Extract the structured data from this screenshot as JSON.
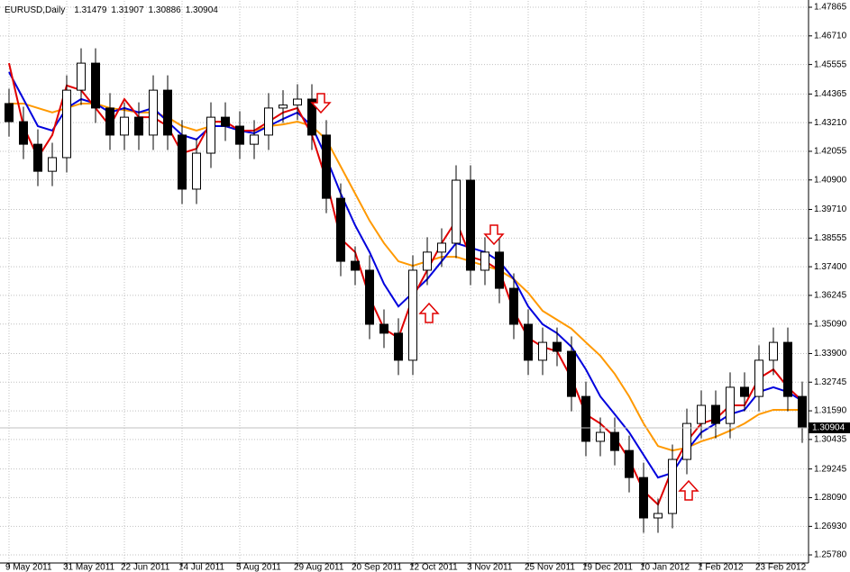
{
  "chart_data": {
    "type": "candlestick",
    "title": "EURUSD,Daily",
    "header_values": [
      1.31479,
      1.31907,
      1.30886,
      1.30904
    ],
    "categories": [
      "9 May 2011",
      null,
      null,
      null,
      "31 May 2011",
      null,
      null,
      null,
      "22 Jun 2011",
      null,
      null,
      null,
      "14 Jul 2011",
      null,
      null,
      null,
      "5 Aug 2011",
      null,
      null,
      null,
      "29 Aug 2011",
      null,
      null,
      null,
      "20 Sep 2011",
      null,
      null,
      null,
      "12 Oct 2011",
      null,
      null,
      null,
      "3 Nov 2011",
      null,
      null,
      null,
      "25 Nov 2011",
      null,
      null,
      null,
      "19 Dec 2011",
      null,
      null,
      null,
      "10 Jan 2012",
      null,
      null,
      null,
      "1 Feb 2012",
      null,
      null,
      null,
      "23 Feb 2012",
      null,
      null,
      null
    ],
    "open": [
      1.4398,
      1.4325,
      1.4234,
      1.4125,
      1.418,
      1.4452,
      1.4561,
      1.438,
      1.4271,
      1.4343,
      1.4271,
      1.4452,
      1.4271,
      1.4053,
      1.4198,
      1.4343,
      1.4307,
      1.4234,
      1.4271,
      1.438,
      1.4392,
      1.4416,
      1.4271,
      1.4016,
      1.3762,
      1.3726,
      1.3508,
      1.3472,
      1.3363,
      1.3726,
      1.3799,
      1.3835,
      1.4089,
      1.3726,
      1.3799,
      1.3653,
      1.3508,
      1.3363,
      1.3435,
      1.3399,
      1.3217,
      1.3036,
      1.3072,
      1.2999,
      1.289,
      1.2727,
      1.2745,
      1.2963,
      1.3108,
      1.3181,
      1.3108,
      1.3254,
      1.3217,
      1.3363,
      1.3435,
      1.3217
    ],
    "high": [
      1.4458,
      1.4385,
      1.4294,
      1.424,
      1.4512,
      1.4621,
      1.4621,
      1.444,
      1.4403,
      1.4403,
      1.4512,
      1.4512,
      1.4331,
      1.4258,
      1.4403,
      1.4403,
      1.4367,
      1.4331,
      1.444,
      1.4452,
      1.4476,
      1.4476,
      1.4331,
      1.4076,
      1.3822,
      1.3786,
      1.3568,
      1.3532,
      1.3786,
      1.3859,
      1.3895,
      1.4149,
      1.4149,
      1.3859,
      1.3859,
      1.3713,
      1.3568,
      1.3495,
      1.3495,
      1.3459,
      1.3277,
      1.3132,
      1.3132,
      1.3059,
      1.295,
      1.2805,
      1.3023,
      1.3168,
      1.3241,
      1.3241,
      1.3314,
      1.3314,
      1.3423,
      1.3495,
      1.3495,
      1.3277
    ],
    "low": [
      1.4265,
      1.4174,
      1.4065,
      1.4065,
      1.412,
      1.4392,
      1.432,
      1.4211,
      1.4211,
      1.4211,
      1.4211,
      1.4211,
      1.3993,
      1.3993,
      1.4138,
      1.4247,
      1.4174,
      1.4174,
      1.4211,
      1.432,
      1.4332,
      1.4211,
      1.3956,
      1.3702,
      1.3666,
      1.3448,
      1.3412,
      1.3303,
      1.3303,
      1.3666,
      1.3739,
      1.3775,
      1.3666,
      1.3666,
      1.3593,
      1.3448,
      1.3303,
      1.3303,
      1.3339,
      1.3157,
      1.2976,
      1.2976,
      1.2939,
      1.283,
      1.2667,
      1.2667,
      1.2685,
      1.2903,
      1.3048,
      1.3048,
      1.3048,
      1.3157,
      1.3157,
      1.3303,
      1.3157,
      1.303
    ],
    "close": [
      1.4325,
      1.4234,
      1.4125,
      1.418,
      1.4452,
      1.4561,
      1.438,
      1.4271,
      1.4343,
      1.4271,
      1.4452,
      1.4271,
      1.4053,
      1.4198,
      1.4343,
      1.4307,
      1.4234,
      1.4271,
      1.438,
      1.4392,
      1.4416,
      1.4271,
      1.4016,
      1.3762,
      1.3726,
      1.3508,
      1.3472,
      1.3363,
      1.3726,
      1.3799,
      1.3835,
      1.4089,
      1.3726,
      1.3799,
      1.3653,
      1.3508,
      1.3363,
      1.3435,
      1.3399,
      1.3217,
      1.3036,
      1.3072,
      1.2999,
      1.289,
      1.2727,
      1.2745,
      1.2963,
      1.3108,
      1.3181,
      1.3108,
      1.3254,
      1.3217,
      1.3363,
      1.3435,
      1.3217,
      1.309
    ],
    "candle_color": "#000000",
    "up_fill": "#ffffff",
    "overlays": [
      {
        "color": "#ff9900",
        "values": [
          1.4398,
          1.4398,
          1.438,
          1.4362,
          1.438,
          1.4398,
          1.4398,
          1.438,
          1.4372,
          1.4362,
          1.4362,
          1.4343,
          1.4307,
          1.4289,
          1.4307,
          1.4307,
          1.4289,
          1.4289,
          1.4307,
          1.4314,
          1.4325,
          1.4307,
          1.4253,
          1.4144,
          1.4035,
          1.3926,
          1.3835,
          1.3762,
          1.3744,
          1.3762,
          1.378,
          1.378,
          1.3762,
          1.3744,
          1.3726,
          1.369,
          1.3635,
          1.3562,
          1.3526,
          1.349,
          1.3435,
          1.3381,
          1.3308,
          1.3217,
          1.3108,
          1.3017,
          1.2999,
          1.301,
          1.3036,
          1.3054,
          1.3079,
          1.3108,
          1.3145,
          1.3163,
          1.3163,
          1.3163
        ]
      },
      {
        "color": "#0000dd",
        "values": [
          1.4525,
          1.4416,
          1.4307,
          1.4289,
          1.438,
          1.4416,
          1.4398,
          1.4362,
          1.438,
          1.4362,
          1.438,
          1.4325,
          1.4271,
          1.4253,
          1.4307,
          1.4307,
          1.4289,
          1.4278,
          1.4307,
          1.4336,
          1.4362,
          1.4307,
          1.418,
          1.4035,
          1.3907,
          1.3799,
          1.3671,
          1.358,
          1.3635,
          1.369,
          1.3762,
          1.3835,
          1.3817,
          1.3799,
          1.3762,
          1.369,
          1.358,
          1.3508,
          1.3472,
          1.3417,
          1.3326,
          1.3217,
          1.3145,
          1.3072,
          1.2981,
          1.289,
          1.2909,
          1.2999,
          1.3072,
          1.3108,
          1.3145,
          1.3163,
          1.3235,
          1.3254,
          1.3235,
          1.3199
        ]
      },
      {
        "color": "#e00000",
        "values": [
          1.4561,
          1.4307,
          1.418,
          1.4271,
          1.4471,
          1.4452,
          1.438,
          1.4307,
          1.4416,
          1.4343,
          1.4343,
          1.4307,
          1.4198,
          1.4216,
          1.4325,
          1.4325,
          1.4289,
          1.4289,
          1.4325,
          1.4362,
          1.438,
          1.4271,
          1.4089,
          1.3853,
          1.3799,
          1.3617,
          1.349,
          1.3453,
          1.3617,
          1.3726,
          1.3835,
          1.3926,
          1.378,
          1.3762,
          1.3726,
          1.3562,
          1.3453,
          1.3417,
          1.3399,
          1.329,
          1.3145,
          1.3108,
          1.3054,
          1.2963,
          1.2836,
          1.2781,
          1.2927,
          1.3036,
          1.3108,
          1.3126,
          1.3181,
          1.3181,
          1.329,
          1.3326,
          1.3254,
          1.3199
        ]
      }
    ],
    "ylim": [
      1.2549,
      1.4812
    ],
    "yticks": [
      1.47865,
      {
        "value": 1.4671,
        "label": "1.46710"
      },
      1.45555,
      1.44365,
      {
        "value": 1.4321,
        "label": "1.43210"
      },
      1.42055,
      {
        "value": 1.409,
        "label": "1.40900"
      },
      {
        "value": 1.3971,
        "label": "1.39710"
      },
      1.38555,
      {
        "value": 1.374,
        "label": "1.37400"
      },
      1.36245,
      {
        "value": 1.3509,
        "label": "1.35090"
      },
      {
        "value": 1.339,
        "label": "1.33900"
      },
      1.32745,
      {
        "value": 1.3159,
        "label": "1.31590"
      },
      1.30435,
      1.29245,
      {
        "value": 1.2809,
        "label": "1.28090"
      },
      {
        "value": 1.2693,
        "label": "1.26930"
      },
      {
        "value": 1.2578,
        "label": "1.25780"
      }
    ],
    "grid": true
  }
}
